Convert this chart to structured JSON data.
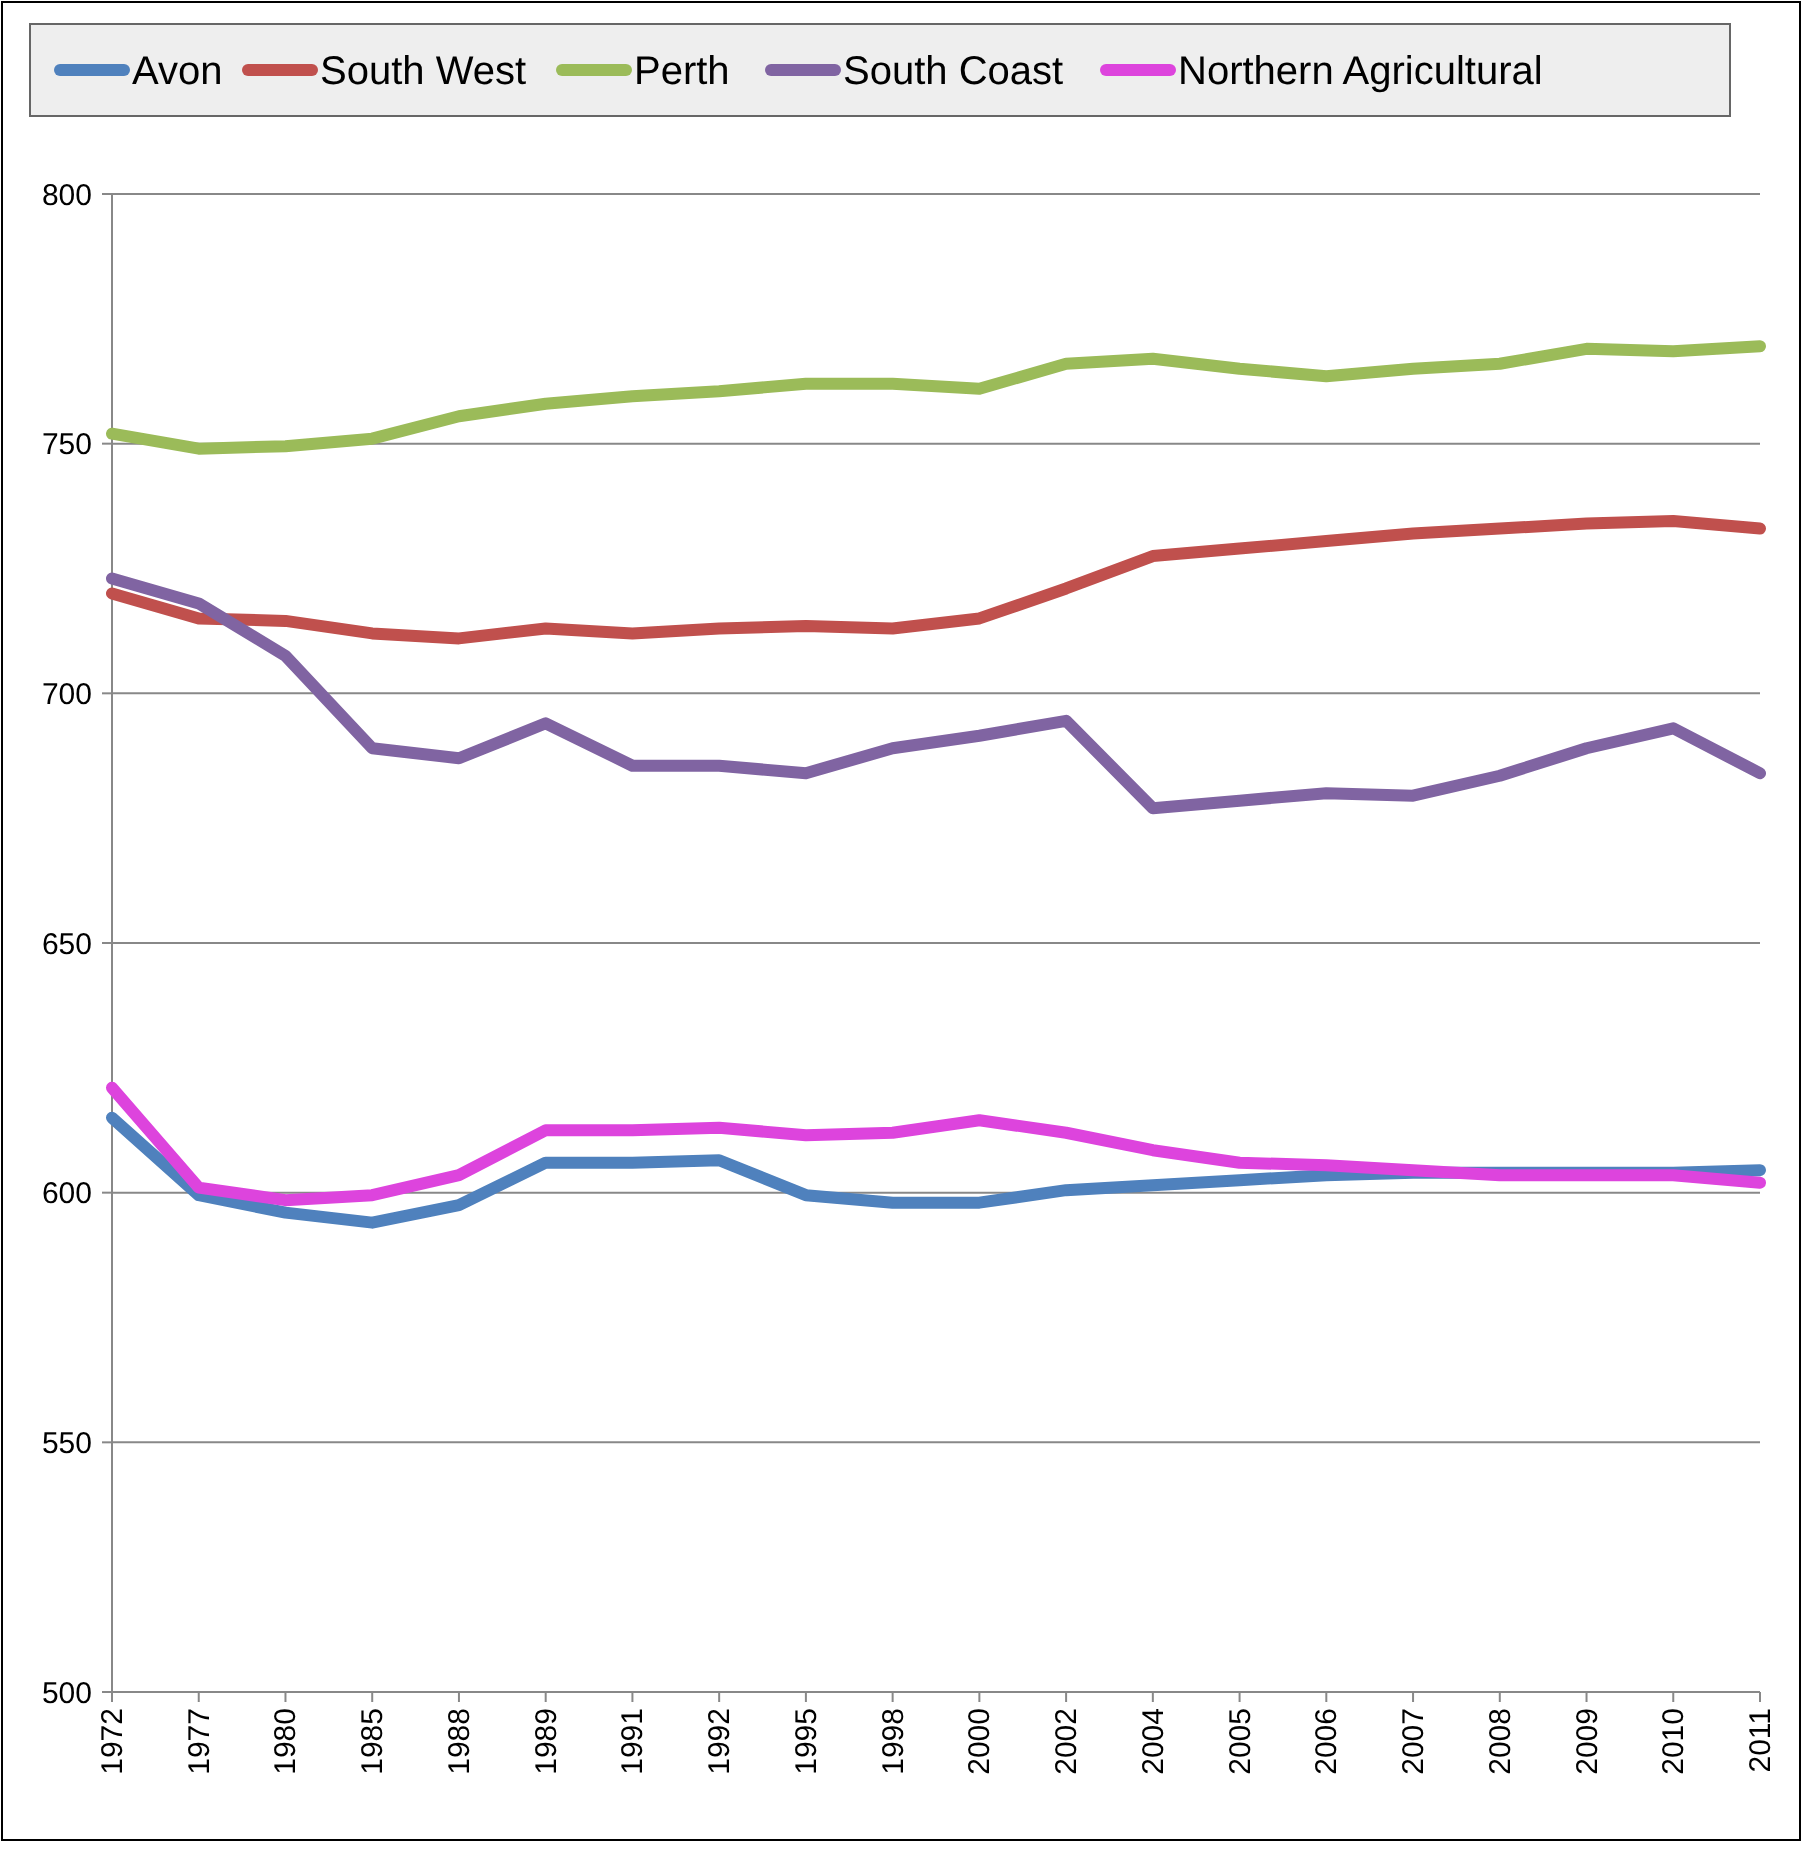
{
  "chart_data": {
    "type": "line",
    "categories": [
      "1972",
      "1977",
      "1980",
      "1985",
      "1988",
      "1989",
      "1991",
      "1992",
      "1995",
      "1998",
      "2000",
      "2002",
      "2004",
      "2005",
      "2006",
      "2007",
      "2008",
      "2009",
      "2010",
      "2011"
    ],
    "series": [
      {
        "name": "Avon",
        "color": "#4f81bd",
        "values": [
          615,
          599.5,
          596,
          594,
          597.5,
          606,
          606,
          606.5,
          599.5,
          598,
          598,
          600.5,
          601.5,
          602.5,
          603.5,
          604,
          604,
          604,
          604,
          604.5
        ]
      },
      {
        "name": "South West",
        "color": "#c0504d",
        "values": [
          720,
          715,
          714.5,
          712,
          711,
          713,
          712,
          713,
          713.5,
          713,
          715,
          721,
          727.5,
          729,
          730.5,
          732,
          733,
          734,
          734.5,
          733
        ]
      },
      {
        "name": "Perth",
        "color": "#9bbb59",
        "values": [
          752,
          749,
          749.5,
          751,
          755.5,
          758,
          759.5,
          760.5,
          762,
          762,
          761,
          766,
          767,
          765,
          763.5,
          765,
          766,
          769,
          768.5,
          769.5
        ]
      },
      {
        "name": "South Coast",
        "color": "#8064a2",
        "values": [
          723,
          718,
          707.5,
          689,
          687,
          694,
          685.5,
          685.5,
          684,
          689,
          691.5,
          694.5,
          677,
          678.5,
          680,
          679.5,
          683.5,
          689,
          693,
          684
        ]
      },
      {
        "name": "Northern Agricultural",
        "color": "#dd44dd",
        "values": [
          621,
          601,
          598.5,
          599.5,
          603.5,
          612.5,
          612.5,
          613,
          611.5,
          612,
          614.5,
          612,
          608.5,
          606,
          605.5,
          604.5,
          603.5,
          603.5,
          603.5,
          602
        ]
      }
    ],
    "ylim": [
      500,
      800
    ],
    "yticks": [
      500,
      550,
      600,
      650,
      700,
      750,
      800
    ],
    "grid": "y",
    "legend": "top",
    "marker": "none",
    "line_style": "solid"
  }
}
